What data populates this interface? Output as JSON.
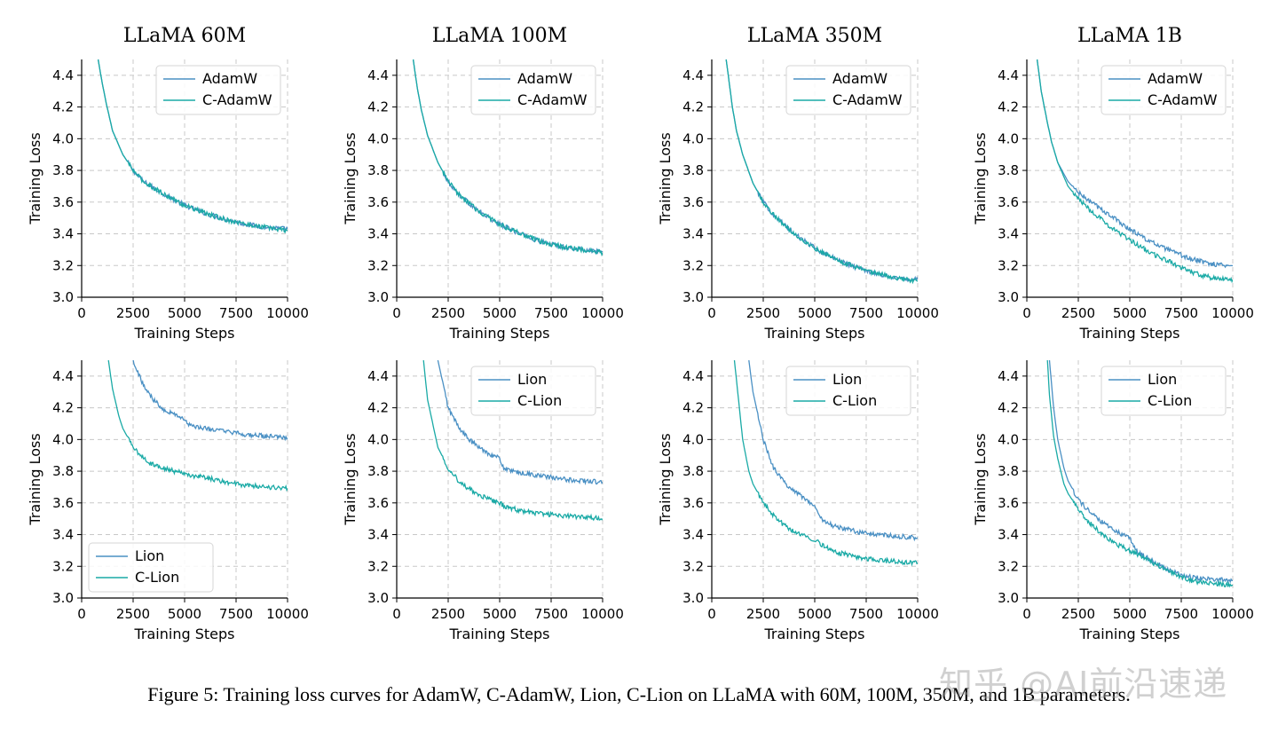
{
  "figure": {
    "caption": "Figure 5: Training loss curves for AdamW, C-AdamW, Lion, C-Lion on LLaMA with 60M, 100M, 350M, and 1B parameters.",
    "watermark": "知乎 @AI前沿速递",
    "colors": {
      "baseline": "#4a90c4",
      "cautious": "#1aaaa6"
    }
  },
  "chart_data": [
    {
      "type": "line",
      "title": "LLaMA 60M",
      "xlabel": "Training Steps",
      "ylabel": "Training Loss",
      "xlim": [
        0,
        10000
      ],
      "ylim": [
        3.0,
        4.5
      ],
      "grid": true,
      "legend": "top-right",
      "xticks": [
        "0",
        "2500",
        "5000",
        "7500",
        "10000"
      ],
      "yticks": [
        "3.0",
        "3.2",
        "3.4",
        "3.6",
        "3.8",
        "4.0",
        "4.2",
        "4.4"
      ],
      "x": [
        800,
        1000,
        1200,
        1500,
        2000,
        2500,
        3000,
        4000,
        5000,
        6000,
        7000,
        8000,
        9000,
        10000
      ],
      "series": [
        {
          "name": "AdamW",
          "values": [
            4.5,
            4.35,
            4.22,
            4.05,
            3.9,
            3.8,
            3.73,
            3.65,
            3.58,
            3.53,
            3.49,
            3.46,
            3.44,
            3.43
          ]
        },
        {
          "name": "C-AdamW",
          "values": [
            4.5,
            4.35,
            4.22,
            4.05,
            3.9,
            3.8,
            3.73,
            3.65,
            3.58,
            3.53,
            3.49,
            3.46,
            3.44,
            3.42
          ]
        }
      ]
    },
    {
      "type": "line",
      "title": "LLaMA 100M",
      "xlabel": "Training Steps",
      "ylabel": "Training Loss",
      "xlim": [
        0,
        10000
      ],
      "ylim": [
        3.0,
        4.5
      ],
      "grid": true,
      "legend": "top-right",
      "xticks": [
        "0",
        "2500",
        "5000",
        "7500",
        "10000"
      ],
      "yticks": [
        "3.0",
        "3.2",
        "3.4",
        "3.6",
        "3.8",
        "4.0",
        "4.2",
        "4.4"
      ],
      "x": [
        800,
        1000,
        1200,
        1500,
        2000,
        2500,
        3000,
        4000,
        5000,
        6000,
        7000,
        8000,
        9000,
        10000
      ],
      "series": [
        {
          "name": "AdamW",
          "values": [
            4.5,
            4.32,
            4.18,
            4.02,
            3.85,
            3.73,
            3.65,
            3.54,
            3.46,
            3.4,
            3.35,
            3.32,
            3.3,
            3.29
          ]
        },
        {
          "name": "C-AdamW",
          "values": [
            4.5,
            4.32,
            4.18,
            4.02,
            3.85,
            3.73,
            3.65,
            3.54,
            3.46,
            3.4,
            3.35,
            3.32,
            3.3,
            3.28
          ]
        }
      ]
    },
    {
      "type": "line",
      "title": "LLaMA 350M",
      "xlabel": "Training Steps",
      "ylabel": "Training Loss",
      "xlim": [
        0,
        10000
      ],
      "ylim": [
        3.0,
        4.5
      ],
      "grid": true,
      "legend": "top-right",
      "xticks": [
        "0",
        "2500",
        "5000",
        "7500",
        "10000"
      ],
      "yticks": [
        "3.0",
        "3.2",
        "3.4",
        "3.6",
        "3.8",
        "4.0",
        "4.2",
        "4.4"
      ],
      "x": [
        700,
        1000,
        1200,
        1500,
        2000,
        2500,
        3000,
        4000,
        5000,
        6000,
        7000,
        8000,
        9000,
        10000
      ],
      "series": [
        {
          "name": "AdamW",
          "values": [
            4.5,
            4.2,
            4.05,
            3.9,
            3.72,
            3.6,
            3.52,
            3.4,
            3.31,
            3.24,
            3.19,
            3.15,
            3.12,
            3.11
          ]
        },
        {
          "name": "C-AdamW",
          "values": [
            4.5,
            4.2,
            4.05,
            3.9,
            3.72,
            3.6,
            3.52,
            3.4,
            3.31,
            3.24,
            3.19,
            3.15,
            3.12,
            3.1
          ]
        }
      ]
    },
    {
      "type": "line",
      "title": "LLaMA 1B",
      "xlabel": "Training Steps",
      "ylabel": "Training Loss",
      "xlim": [
        0,
        10000
      ],
      "ylim": [
        3.0,
        4.5
      ],
      "grid": true,
      "legend": "top-right",
      "xticks": [
        "0",
        "2500",
        "5000",
        "7500",
        "10000"
      ],
      "yticks": [
        "3.0",
        "3.2",
        "3.4",
        "3.6",
        "3.8",
        "4.0",
        "4.2",
        "4.4"
      ],
      "x": [
        500,
        700,
        1000,
        1200,
        1500,
        2000,
        2500,
        3000,
        4000,
        5000,
        6000,
        7000,
        8000,
        9000,
        10000
      ],
      "series": [
        {
          "name": "AdamW",
          "values": [
            4.5,
            4.3,
            4.1,
            3.98,
            3.85,
            3.73,
            3.66,
            3.61,
            3.52,
            3.43,
            3.35,
            3.29,
            3.24,
            3.21,
            3.2
          ]
        },
        {
          "name": "C-AdamW",
          "values": [
            4.5,
            4.3,
            4.1,
            3.98,
            3.85,
            3.7,
            3.62,
            3.56,
            3.45,
            3.36,
            3.28,
            3.22,
            3.16,
            3.12,
            3.11
          ]
        }
      ]
    },
    {
      "type": "line",
      "title": "",
      "xlabel": "Training Steps",
      "ylabel": "Training Loss",
      "xlim": [
        0,
        10000
      ],
      "ylim": [
        3.0,
        4.5
      ],
      "grid": true,
      "legend": "bottom-left",
      "xticks": [
        "0",
        "2500",
        "5000",
        "7500",
        "10000"
      ],
      "yticks": [
        "3.0",
        "3.2",
        "3.4",
        "3.6",
        "3.8",
        "4.0",
        "4.2",
        "4.4"
      ],
      "x": [
        1300,
        1500,
        1800,
        2000,
        2500,
        3000,
        3500,
        4000,
        4500,
        5000,
        5200,
        5500,
        6000,
        7000,
        8000,
        9000,
        10000
      ],
      "series": [
        {
          "name": "Lion",
          "values": [
            null,
            null,
            null,
            null,
            4.5,
            4.34,
            4.25,
            4.19,
            4.16,
            4.13,
            4.09,
            4.08,
            4.07,
            4.05,
            4.03,
            4.02,
            4.01
          ]
        },
        {
          "name": "C-Lion",
          "values": [
            4.5,
            4.32,
            4.15,
            4.07,
            3.95,
            3.88,
            3.84,
            3.82,
            3.8,
            3.79,
            3.78,
            3.77,
            3.76,
            3.73,
            3.71,
            3.7,
            3.69
          ]
        }
      ]
    },
    {
      "type": "line",
      "title": "",
      "xlabel": "Training Steps",
      "ylabel": "Training Loss",
      "xlim": [
        0,
        10000
      ],
      "ylim": [
        3.0,
        4.5
      ],
      "grid": true,
      "legend": "top-right",
      "xticks": [
        "0",
        "2500",
        "5000",
        "7500",
        "10000"
      ],
      "yticks": [
        "3.0",
        "3.2",
        "3.4",
        "3.6",
        "3.8",
        "4.0",
        "4.2",
        "4.4"
      ],
      "x": [
        1300,
        1500,
        2000,
        2500,
        3000,
        3500,
        4000,
        4500,
        5000,
        5200,
        5500,
        6000,
        7000,
        8000,
        9000,
        10000
      ],
      "series": [
        {
          "name": "Lion",
          "values": [
            null,
            null,
            4.5,
            4.2,
            4.08,
            4.0,
            3.95,
            3.91,
            3.88,
            3.82,
            3.8,
            3.79,
            3.77,
            3.75,
            3.74,
            3.73
          ]
        },
        {
          "name": "C-Lion",
          "values": [
            4.5,
            4.25,
            3.95,
            3.82,
            3.74,
            3.69,
            3.65,
            3.62,
            3.6,
            3.58,
            3.57,
            3.55,
            3.53,
            3.52,
            3.51,
            3.5
          ]
        }
      ]
    },
    {
      "type": "line",
      "title": "",
      "xlabel": "Training Steps",
      "ylabel": "Training Loss",
      "xlim": [
        0,
        10000
      ],
      "ylim": [
        3.0,
        4.5
      ],
      "grid": true,
      "legend": "top-right",
      "xticks": [
        "0",
        "2500",
        "5000",
        "7500",
        "10000"
      ],
      "yticks": [
        "3.0",
        "3.2",
        "3.4",
        "3.6",
        "3.8",
        "4.0",
        "4.2",
        "4.4"
      ],
      "x": [
        1100,
        1500,
        1800,
        2000,
        2500,
        3000,
        3500,
        4000,
        4500,
        5000,
        5200,
        5500,
        6000,
        7000,
        8000,
        9000,
        10000
      ],
      "series": [
        {
          "name": "Lion",
          "values": [
            null,
            null,
            4.5,
            4.3,
            4.0,
            3.82,
            3.73,
            3.68,
            3.63,
            3.58,
            3.52,
            3.48,
            3.45,
            3.42,
            3.4,
            3.39,
            3.38
          ]
        },
        {
          "name": "C-Lion",
          "values": [
            4.5,
            4.0,
            3.8,
            3.72,
            3.6,
            3.52,
            3.46,
            3.42,
            3.39,
            3.37,
            3.35,
            3.32,
            3.29,
            3.26,
            3.24,
            3.23,
            3.22
          ]
        }
      ]
    },
    {
      "type": "line",
      "title": "",
      "xlabel": "Training Steps",
      "ylabel": "Training Loss",
      "xlim": [
        0,
        10000
      ],
      "ylim": [
        3.0,
        4.5
      ],
      "grid": true,
      "legend": "top-right",
      "xticks": [
        "0",
        "2500",
        "5000",
        "7500",
        "10000"
      ],
      "yticks": [
        "3.0",
        "3.2",
        "3.4",
        "3.6",
        "3.8",
        "4.0",
        "4.2",
        "4.4"
      ],
      "x": [
        1000,
        1100,
        1300,
        1500,
        1800,
        2000,
        2500,
        3000,
        3500,
        4000,
        4500,
        5000,
        5300,
        5500,
        6000,
        7000,
        8000,
        9000,
        10000
      ],
      "series": [
        {
          "name": "Lion",
          "values": [
            null,
            4.5,
            4.2,
            4.0,
            3.82,
            3.74,
            3.62,
            3.55,
            3.49,
            3.45,
            3.41,
            3.38,
            3.3,
            3.28,
            3.24,
            3.17,
            3.13,
            3.12,
            3.11
          ]
        },
        {
          "name": "C-Lion",
          "values": [
            4.5,
            4.28,
            4.02,
            3.88,
            3.72,
            3.66,
            3.56,
            3.48,
            3.42,
            3.37,
            3.33,
            3.3,
            3.28,
            3.27,
            3.23,
            3.16,
            3.11,
            3.09,
            3.08
          ]
        }
      ]
    }
  ]
}
